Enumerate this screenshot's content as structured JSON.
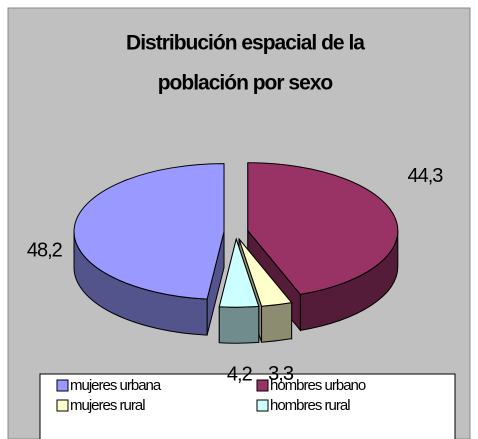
{
  "chart_data": {
    "type": "pie3d",
    "title": [
      "Distribución espacial de la",
      "población por sexo"
    ],
    "categories": [
      "mujeres urbana",
      "hombres urbano",
      "mujeres rural",
      "hombres rural"
    ],
    "values": [
      48.2,
      44.3,
      3.3,
      4.2
    ],
    "value_labels": [
      "48,2",
      "44,3",
      "3,3",
      "4,2"
    ],
    "colors": [
      "#9999FF",
      "#993366",
      "#FFFFCC",
      "#CCFFFF"
    ],
    "legend": "bottom"
  }
}
